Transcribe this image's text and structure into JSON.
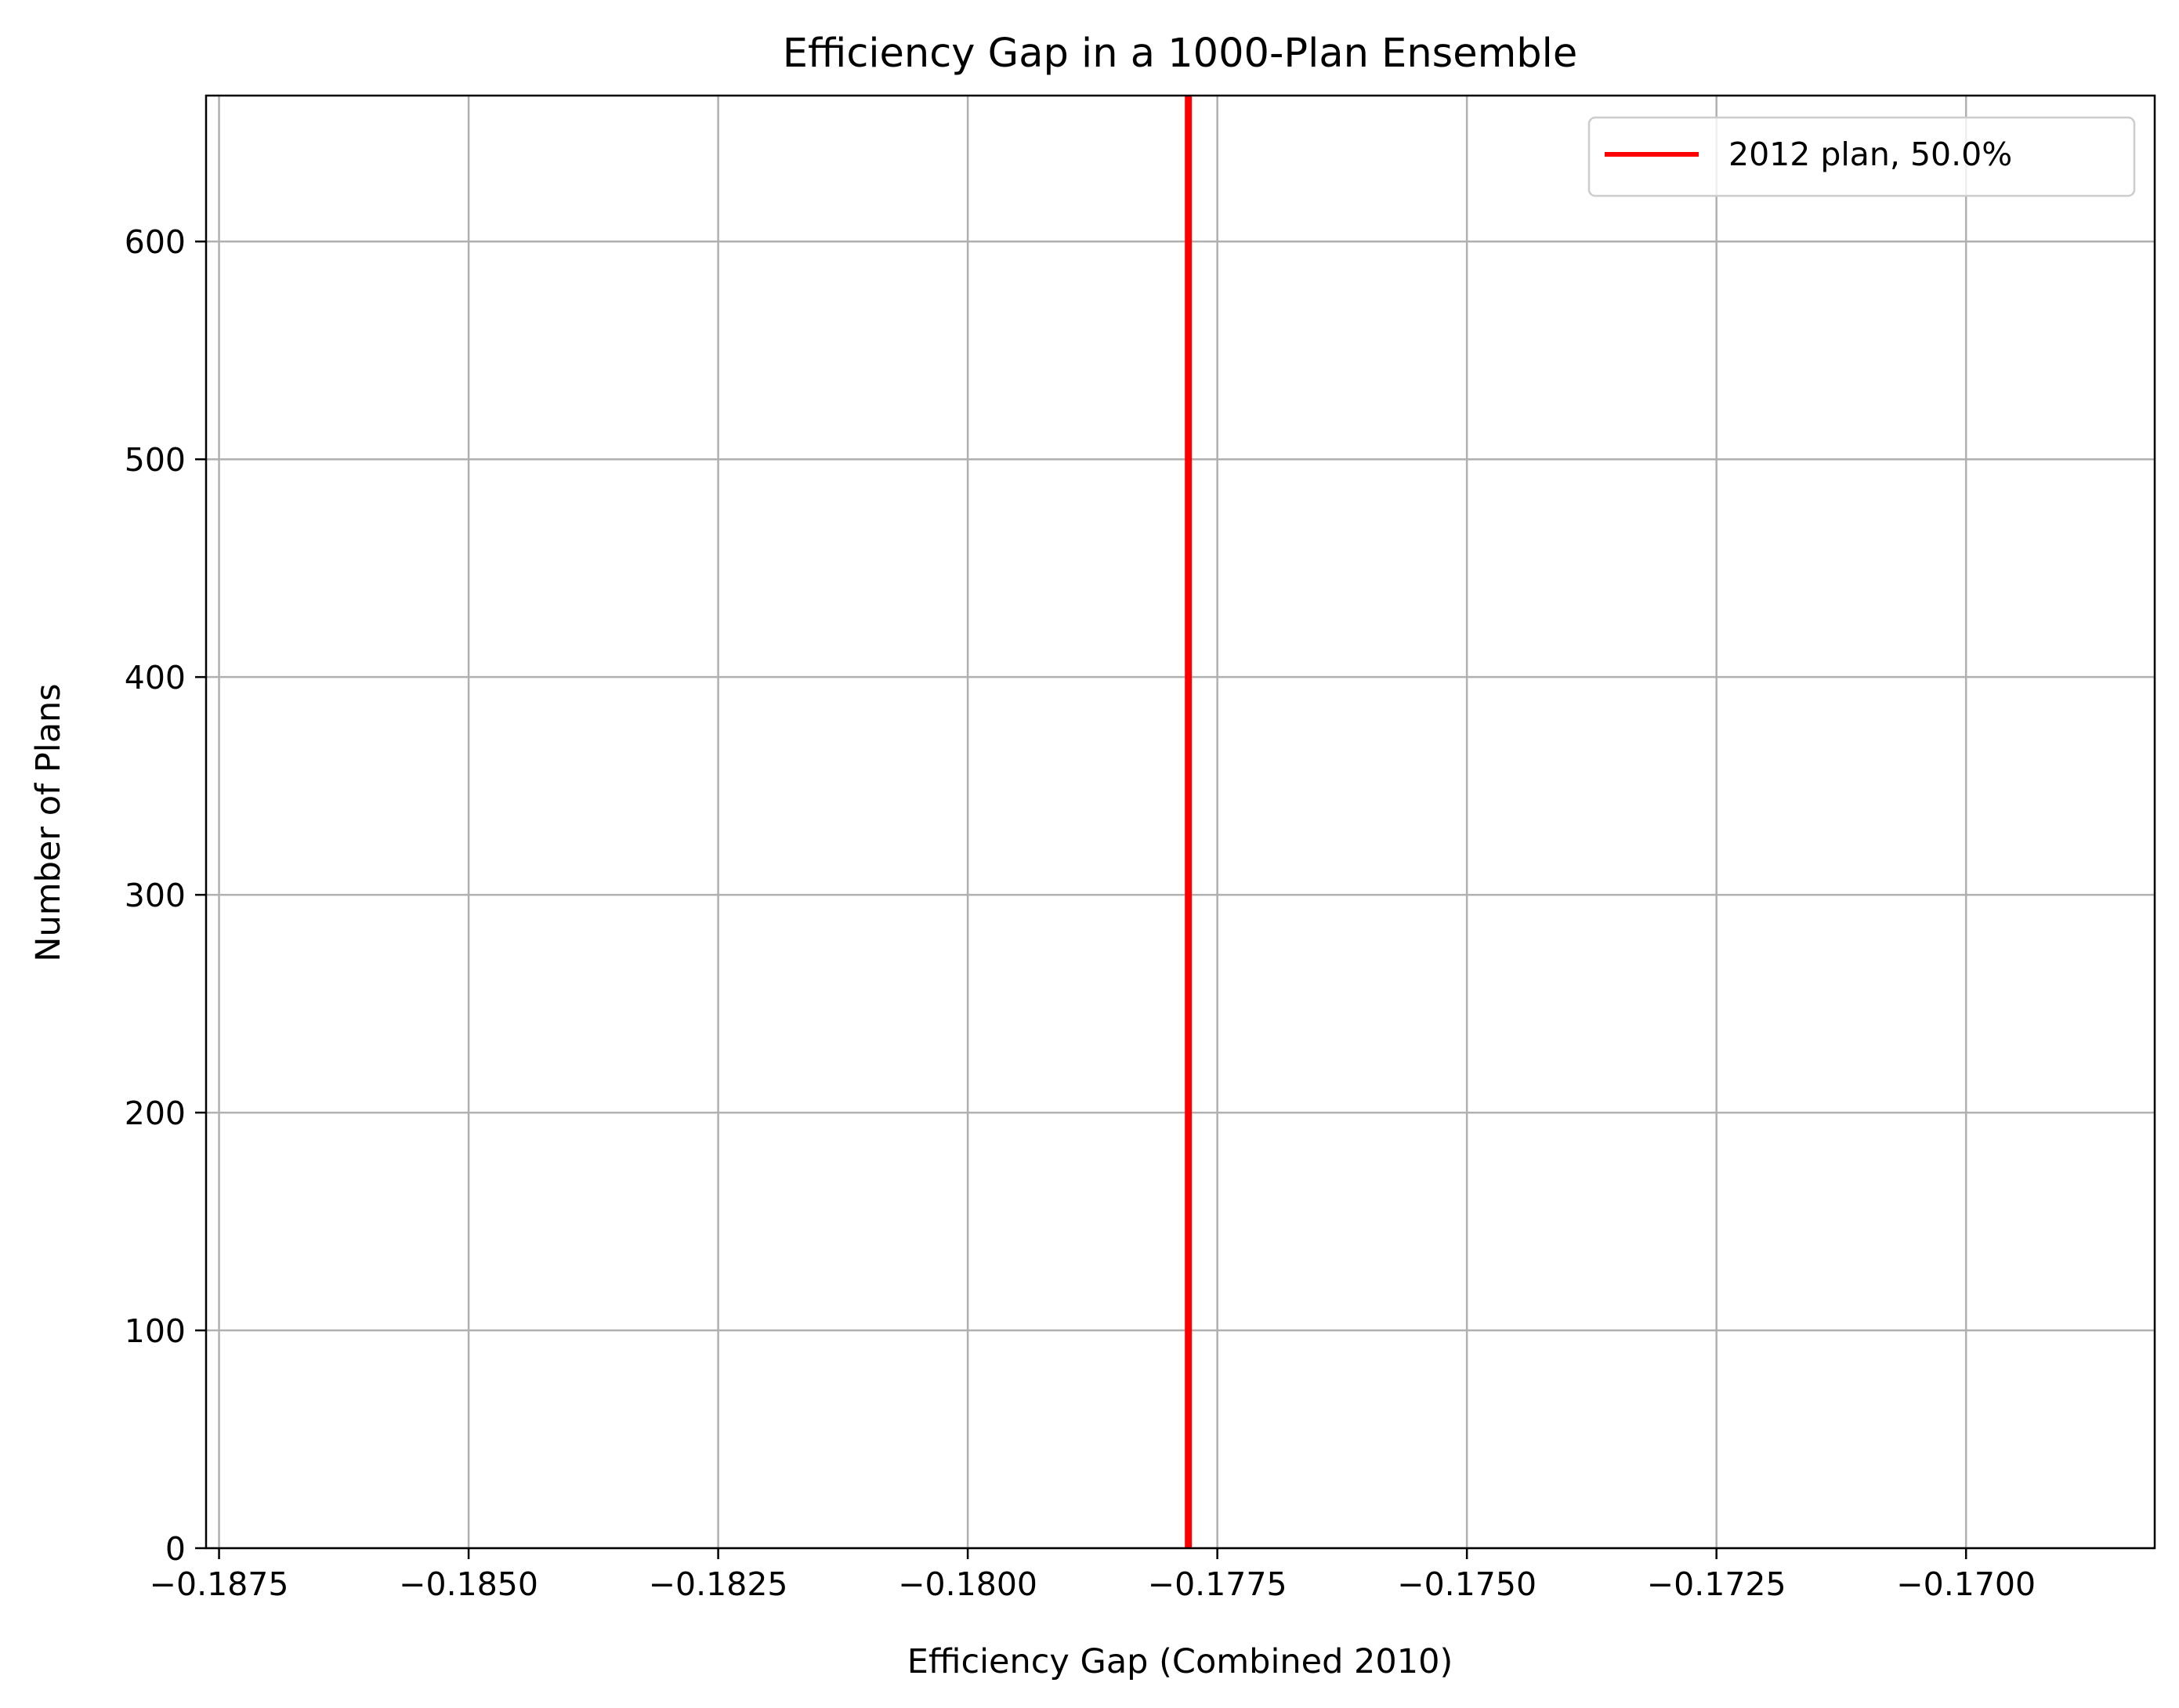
{
  "chart_data": {
    "type": "histogram",
    "title": "Efficiency Gap in a 1000-Plan Ensemble",
    "xlabel": "Efficiency Gap (Combined 2010)",
    "ylabel": "Number of Plans",
    "xlim": [
      -0.18763,
      -0.16811
    ],
    "ylim": [
      0,
      667
    ],
    "x_ticks": [
      -0.1875,
      -0.185,
      -0.1825,
      -0.18,
      -0.1775,
      -0.175,
      -0.1725,
      -0.17
    ],
    "x_tick_labels": [
      "−0.1875",
      "−0.1850",
      "−0.1825",
      "−0.1800",
      "−0.1775",
      "−0.1750",
      "−0.1725",
      "−0.1700"
    ],
    "y_ticks": [
      0,
      100,
      200,
      300,
      400,
      500,
      600
    ],
    "y_tick_labels": [
      "0",
      "100",
      "200",
      "300",
      "400",
      "500",
      "600"
    ],
    "grid": true,
    "legend_position": "upper right",
    "reference_line": {
      "x": -0.17779,
      "label": "2012 plan, 50.0%",
      "color": "#ff0000"
    },
    "colors": {
      "grid": "#b0b0b0",
      "axes": "#000000",
      "reference": "#ff0000"
    }
  }
}
